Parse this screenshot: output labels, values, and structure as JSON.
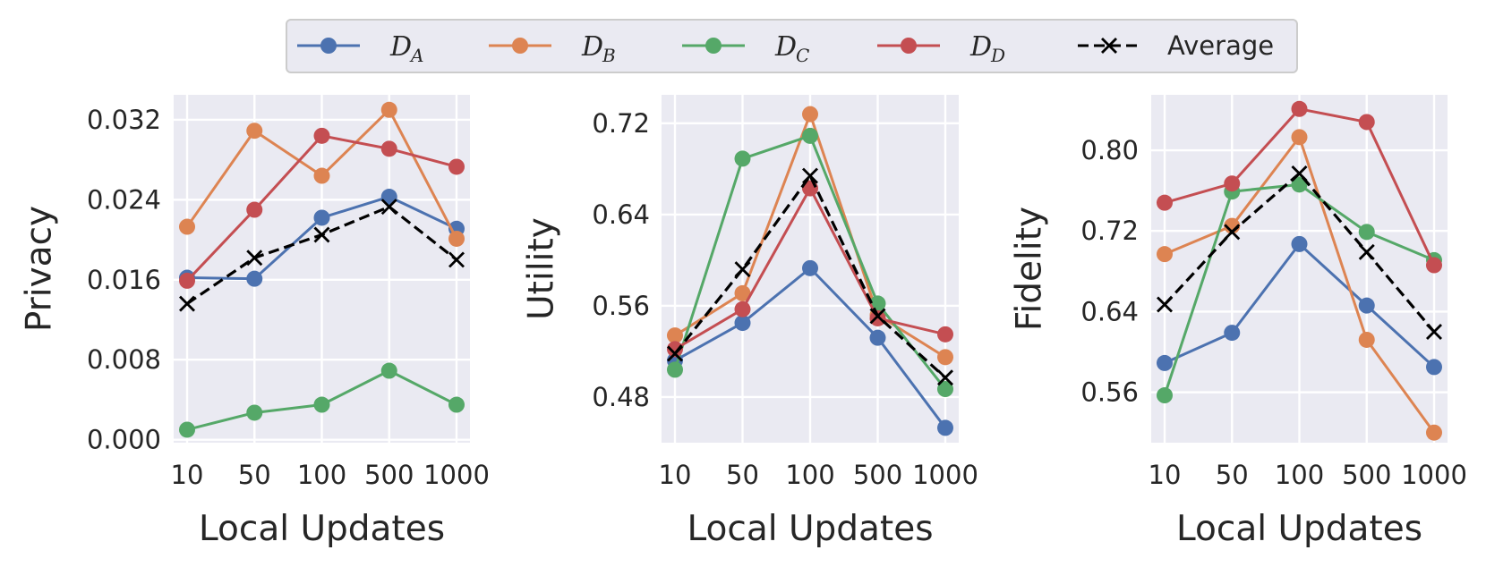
{
  "legend": [
    {
      "key": "DA",
      "label": "D",
      "sub": "A",
      "color": "#4c72b0",
      "marker": "circle",
      "dashed": false
    },
    {
      "key": "DB",
      "label": "D",
      "sub": "B",
      "color": "#dd8452",
      "marker": "circle",
      "dashed": false
    },
    {
      "key": "DC",
      "label": "D",
      "sub": "C",
      "color": "#55a868",
      "marker": "circle",
      "dashed": false
    },
    {
      "key": "DD",
      "label": "D",
      "sub": "D",
      "color": "#c44e52",
      "marker": "circle",
      "dashed": false
    },
    {
      "key": "Avg",
      "label": "Average",
      "sub": "",
      "color": "#000000",
      "marker": "x",
      "dashed": true
    }
  ],
  "chart_data": [
    {
      "type": "line",
      "title": "",
      "xlabel": "Local Updates",
      "ylabel": "Privacy",
      "categories": [
        "10",
        "50",
        "100",
        "500",
        "1000"
      ],
      "ylim": [
        -0.0003,
        0.0345
      ],
      "yticks": [
        0.0,
        0.008,
        0.016,
        0.024,
        0.032
      ],
      "ytick_labels": [
        "0.000",
        "0.008",
        "0.016",
        "0.024",
        "0.032"
      ],
      "series": [
        {
          "name": "DA",
          "values": [
            0.0162,
            0.0161,
            0.0222,
            0.0243,
            0.0211
          ]
        },
        {
          "name": "DB",
          "values": [
            0.0213,
            0.0309,
            0.0264,
            0.033,
            0.0201
          ]
        },
        {
          "name": "DC",
          "values": [
            0.001,
            0.0027,
            0.0035,
            0.0069,
            0.0035
          ]
        },
        {
          "name": "DD",
          "values": [
            0.0159,
            0.023,
            0.0304,
            0.0291,
            0.0273
          ]
        },
        {
          "name": "Avg",
          "values": [
            0.0136,
            0.0182,
            0.0205,
            0.0233,
            0.018
          ]
        }
      ]
    },
    {
      "type": "line",
      "title": "",
      "xlabel": "Local Updates",
      "ylabel": "Utility",
      "categories": [
        "10",
        "50",
        "100",
        "500",
        "1000"
      ],
      "ylim": [
        0.44,
        0.745
      ],
      "yticks": [
        0.48,
        0.56,
        0.64,
        0.72
      ],
      "ytick_labels": [
        "0.48",
        "0.56",
        "0.64",
        "0.72"
      ],
      "series": [
        {
          "name": "DA",
          "values": [
            0.512,
            0.545,
            0.593,
            0.532,
            0.453
          ]
        },
        {
          "name": "DB",
          "values": [
            0.534,
            0.571,
            0.728,
            0.552,
            0.515
          ]
        },
        {
          "name": "DC",
          "values": [
            0.504,
            0.689,
            0.709,
            0.562,
            0.487
          ]
        },
        {
          "name": "DD",
          "values": [
            0.522,
            0.557,
            0.663,
            0.549,
            0.535
          ]
        },
        {
          "name": "Avg",
          "values": [
            0.518,
            0.592,
            0.674,
            0.551,
            0.497
          ]
        }
      ]
    },
    {
      "type": "line",
      "title": "",
      "xlabel": "Local Updates",
      "ylabel": "Fidelity",
      "categories": [
        "10",
        "50",
        "100",
        "500",
        "1000"
      ],
      "ylim": [
        0.51,
        0.855
      ],
      "yticks": [
        0.56,
        0.64,
        0.72,
        0.8
      ],
      "ytick_labels": [
        "0.56",
        "0.64",
        "0.72",
        "0.80"
      ],
      "series": [
        {
          "name": "DA",
          "values": [
            0.589,
            0.619,
            0.707,
            0.646,
            0.585
          ]
        },
        {
          "name": "DB",
          "values": [
            0.697,
            0.725,
            0.813,
            0.612,
            0.52
          ]
        },
        {
          "name": "DC",
          "values": [
            0.557,
            0.759,
            0.766,
            0.719,
            0.691
          ]
        },
        {
          "name": "DD",
          "values": [
            0.748,
            0.767,
            0.841,
            0.828,
            0.686
          ]
        },
        {
          "name": "Avg",
          "values": [
            0.647,
            0.719,
            0.777,
            0.699,
            0.62
          ]
        }
      ]
    }
  ]
}
